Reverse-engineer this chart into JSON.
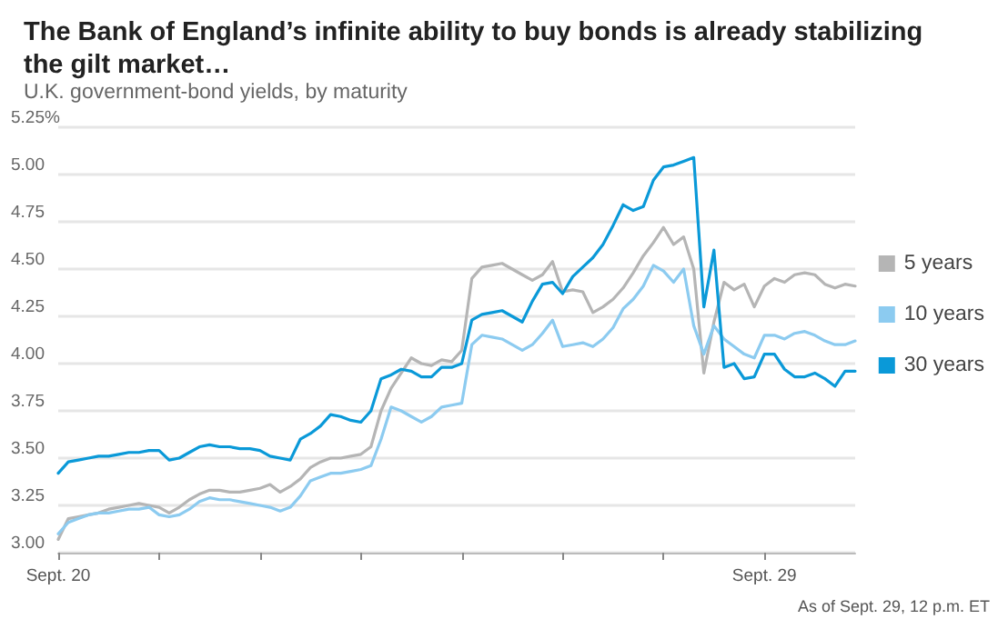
{
  "chart_data": {
    "type": "line",
    "title": "The Bank of England’s infinite ability to buy bonds is already stabilizing the gilt market…",
    "subtitle": "U.K. government-bond yields, by maturity",
    "annotations": [
      "As of Sept. 29, 12 p.m. ET"
    ],
    "categories": [
      "Sept. 20",
      null,
      null,
      null,
      null,
      null,
      null,
      null,
      null,
      null,
      null,
      null,
      null,
      null,
      null,
      null,
      null,
      null,
      null,
      null,
      null,
      null,
      null,
      null,
      null,
      null,
      null,
      null,
      null,
      null,
      null,
      null,
      null,
      null,
      null,
      null,
      null,
      null,
      null,
      null,
      null,
      null,
      null,
      null,
      null,
      null,
      null,
      null,
      null,
      null,
      null,
      null,
      null,
      null,
      null,
      null,
      null,
      null,
      null,
      null,
      null,
      null,
      null,
      null,
      null,
      null,
      null,
      null,
      null,
      null,
      "Sept. 29",
      null,
      null,
      null,
      null,
      null,
      null,
      null,
      null,
      null
    ],
    "ylim": [
      3.0,
      5.25
    ],
    "yticks": [
      {
        "value": 3,
        "label": "3.00"
      },
      {
        "value": 3.25,
        "label": "3.25"
      },
      {
        "value": 3.5,
        "label": "3.50"
      },
      {
        "value": 3.75,
        "label": "3.75"
      },
      {
        "value": 4,
        "label": "4.00"
      },
      {
        "value": 4.25,
        "label": "4.25"
      },
      {
        "value": 4.5,
        "label": "4.50"
      },
      {
        "value": 4.75,
        "label": "4.75"
      },
      {
        "value": 5,
        "label": "5.00"
      },
      {
        "value": 5.25,
        "label": "5.25%"
      }
    ],
    "grid": "y",
    "legend": "right",
    "line_style": "solid",
    "series": [
      {
        "name": "5 years",
        "color": "#b5b5b5",
        "values": [
          3.07,
          3.18,
          3.19,
          3.2,
          3.21,
          3.23,
          3.24,
          3.25,
          3.26,
          3.25,
          3.24,
          3.21,
          3.24,
          3.28,
          3.31,
          3.33,
          3.33,
          3.32,
          3.32,
          3.33,
          3.34,
          3.36,
          3.32,
          3.35,
          3.39,
          3.45,
          3.48,
          3.5,
          3.5,
          3.51,
          3.52,
          3.56,
          3.75,
          3.87,
          3.95,
          4.03,
          4.0,
          3.99,
          4.02,
          4.01,
          4.07,
          4.45,
          4.51,
          4.52,
          4.53,
          4.5,
          4.47,
          4.44,
          4.47,
          4.54,
          4.38,
          4.39,
          4.38,
          4.27,
          4.3,
          4.34,
          4.4,
          4.48,
          4.57,
          4.64,
          4.72,
          4.63,
          4.67,
          4.5,
          3.95,
          4.22,
          4.43,
          4.39,
          4.42,
          4.3,
          4.41,
          4.45,
          4.43,
          4.47,
          4.48,
          4.47,
          4.42,
          4.4,
          4.42,
          4.41
        ]
      },
      {
        "name": "10 years",
        "color": "#8ccbf0",
        "values": [
          3.1,
          3.16,
          3.18,
          3.2,
          3.21,
          3.21,
          3.22,
          3.23,
          3.23,
          3.24,
          3.2,
          3.19,
          3.2,
          3.23,
          3.27,
          3.29,
          3.28,
          3.28,
          3.27,
          3.26,
          3.25,
          3.24,
          3.22,
          3.24,
          3.3,
          3.38,
          3.4,
          3.42,
          3.42,
          3.43,
          3.44,
          3.46,
          3.6,
          3.77,
          3.75,
          3.72,
          3.69,
          3.72,
          3.77,
          3.78,
          3.79,
          4.1,
          4.15,
          4.14,
          4.13,
          4.1,
          4.07,
          4.1,
          4.16,
          4.23,
          4.09,
          4.1,
          4.11,
          4.09,
          4.13,
          4.19,
          4.29,
          4.34,
          4.41,
          4.52,
          4.49,
          4.43,
          4.5,
          4.2,
          4.05,
          4.2,
          4.13,
          4.09,
          4.05,
          4.03,
          4.15,
          4.15,
          4.13,
          4.16,
          4.17,
          4.15,
          4.12,
          4.1,
          4.1,
          4.12
        ]
      },
      {
        "name": "30 years",
        "color": "#0a99d8",
        "values": [
          3.42,
          3.48,
          3.49,
          3.5,
          3.51,
          3.51,
          3.52,
          3.53,
          3.53,
          3.54,
          3.54,
          3.49,
          3.5,
          3.53,
          3.56,
          3.57,
          3.56,
          3.56,
          3.55,
          3.55,
          3.54,
          3.51,
          3.5,
          3.49,
          3.6,
          3.63,
          3.67,
          3.73,
          3.72,
          3.7,
          3.69,
          3.75,
          3.92,
          3.94,
          3.97,
          3.96,
          3.93,
          3.93,
          3.98,
          3.98,
          4.0,
          4.23,
          4.26,
          4.27,
          4.28,
          4.25,
          4.22,
          4.33,
          4.42,
          4.43,
          4.37,
          4.46,
          4.51,
          4.56,
          4.63,
          4.73,
          4.84,
          4.81,
          4.83,
          4.97,
          5.04,
          5.05,
          5.07,
          5.09,
          4.3,
          4.6,
          3.98,
          4.0,
          3.92,
          3.93,
          4.05,
          4.05,
          3.97,
          3.93,
          3.93,
          3.95,
          3.92,
          3.88,
          3.96,
          3.96
        ]
      }
    ]
  }
}
